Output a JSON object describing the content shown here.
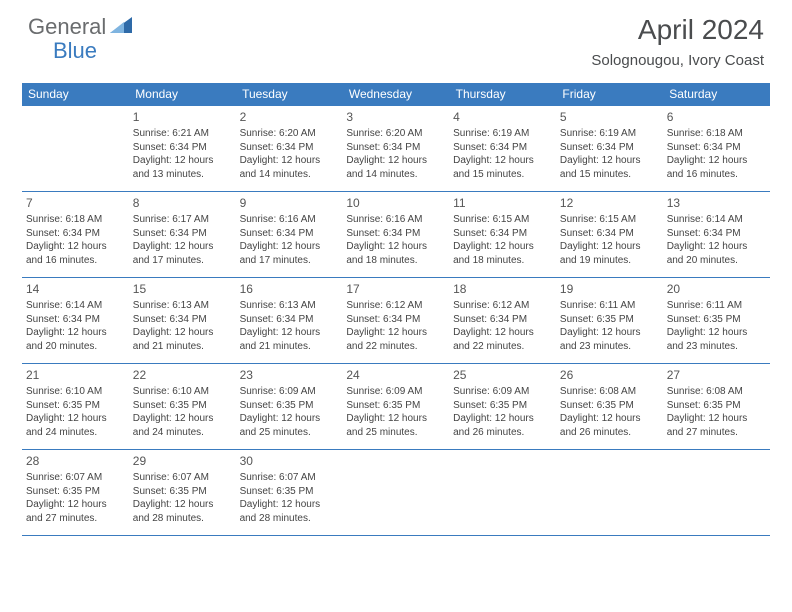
{
  "brand": {
    "part1": "General",
    "part2": "Blue"
  },
  "title": "April 2024",
  "subtitle": "Solognougou, Ivory Coast",
  "colors": {
    "header_bg": "#3a7bbf",
    "header_text": "#ffffff",
    "border": "#3a7bbf",
    "body_text": "#444444",
    "title_text": "#4a4c4e",
    "logo_gray": "#6a6c6e",
    "logo_blue": "#3a7bbf",
    "background": "#ffffff"
  },
  "weekdays": [
    "Sunday",
    "Monday",
    "Tuesday",
    "Wednesday",
    "Thursday",
    "Friday",
    "Saturday"
  ],
  "weeks": [
    [
      null,
      {
        "n": "1",
        "sr": "Sunrise: 6:21 AM",
        "ss": "Sunset: 6:34 PM",
        "d1": "Daylight: 12 hours",
        "d2": "and 13 minutes."
      },
      {
        "n": "2",
        "sr": "Sunrise: 6:20 AM",
        "ss": "Sunset: 6:34 PM",
        "d1": "Daylight: 12 hours",
        "d2": "and 14 minutes."
      },
      {
        "n": "3",
        "sr": "Sunrise: 6:20 AM",
        "ss": "Sunset: 6:34 PM",
        "d1": "Daylight: 12 hours",
        "d2": "and 14 minutes."
      },
      {
        "n": "4",
        "sr": "Sunrise: 6:19 AM",
        "ss": "Sunset: 6:34 PM",
        "d1": "Daylight: 12 hours",
        "d2": "and 15 minutes."
      },
      {
        "n": "5",
        "sr": "Sunrise: 6:19 AM",
        "ss": "Sunset: 6:34 PM",
        "d1": "Daylight: 12 hours",
        "d2": "and 15 minutes."
      },
      {
        "n": "6",
        "sr": "Sunrise: 6:18 AM",
        "ss": "Sunset: 6:34 PM",
        "d1": "Daylight: 12 hours",
        "d2": "and 16 minutes."
      }
    ],
    [
      {
        "n": "7",
        "sr": "Sunrise: 6:18 AM",
        "ss": "Sunset: 6:34 PM",
        "d1": "Daylight: 12 hours",
        "d2": "and 16 minutes."
      },
      {
        "n": "8",
        "sr": "Sunrise: 6:17 AM",
        "ss": "Sunset: 6:34 PM",
        "d1": "Daylight: 12 hours",
        "d2": "and 17 minutes."
      },
      {
        "n": "9",
        "sr": "Sunrise: 6:16 AM",
        "ss": "Sunset: 6:34 PM",
        "d1": "Daylight: 12 hours",
        "d2": "and 17 minutes."
      },
      {
        "n": "10",
        "sr": "Sunrise: 6:16 AM",
        "ss": "Sunset: 6:34 PM",
        "d1": "Daylight: 12 hours",
        "d2": "and 18 minutes."
      },
      {
        "n": "11",
        "sr": "Sunrise: 6:15 AM",
        "ss": "Sunset: 6:34 PM",
        "d1": "Daylight: 12 hours",
        "d2": "and 18 minutes."
      },
      {
        "n": "12",
        "sr": "Sunrise: 6:15 AM",
        "ss": "Sunset: 6:34 PM",
        "d1": "Daylight: 12 hours",
        "d2": "and 19 minutes."
      },
      {
        "n": "13",
        "sr": "Sunrise: 6:14 AM",
        "ss": "Sunset: 6:34 PM",
        "d1": "Daylight: 12 hours",
        "d2": "and 20 minutes."
      }
    ],
    [
      {
        "n": "14",
        "sr": "Sunrise: 6:14 AM",
        "ss": "Sunset: 6:34 PM",
        "d1": "Daylight: 12 hours",
        "d2": "and 20 minutes."
      },
      {
        "n": "15",
        "sr": "Sunrise: 6:13 AM",
        "ss": "Sunset: 6:34 PM",
        "d1": "Daylight: 12 hours",
        "d2": "and 21 minutes."
      },
      {
        "n": "16",
        "sr": "Sunrise: 6:13 AM",
        "ss": "Sunset: 6:34 PM",
        "d1": "Daylight: 12 hours",
        "d2": "and 21 minutes."
      },
      {
        "n": "17",
        "sr": "Sunrise: 6:12 AM",
        "ss": "Sunset: 6:34 PM",
        "d1": "Daylight: 12 hours",
        "d2": "and 22 minutes."
      },
      {
        "n": "18",
        "sr": "Sunrise: 6:12 AM",
        "ss": "Sunset: 6:34 PM",
        "d1": "Daylight: 12 hours",
        "d2": "and 22 minutes."
      },
      {
        "n": "19",
        "sr": "Sunrise: 6:11 AM",
        "ss": "Sunset: 6:35 PM",
        "d1": "Daylight: 12 hours",
        "d2": "and 23 minutes."
      },
      {
        "n": "20",
        "sr": "Sunrise: 6:11 AM",
        "ss": "Sunset: 6:35 PM",
        "d1": "Daylight: 12 hours",
        "d2": "and 23 minutes."
      }
    ],
    [
      {
        "n": "21",
        "sr": "Sunrise: 6:10 AM",
        "ss": "Sunset: 6:35 PM",
        "d1": "Daylight: 12 hours",
        "d2": "and 24 minutes."
      },
      {
        "n": "22",
        "sr": "Sunrise: 6:10 AM",
        "ss": "Sunset: 6:35 PM",
        "d1": "Daylight: 12 hours",
        "d2": "and 24 minutes."
      },
      {
        "n": "23",
        "sr": "Sunrise: 6:09 AM",
        "ss": "Sunset: 6:35 PM",
        "d1": "Daylight: 12 hours",
        "d2": "and 25 minutes."
      },
      {
        "n": "24",
        "sr": "Sunrise: 6:09 AM",
        "ss": "Sunset: 6:35 PM",
        "d1": "Daylight: 12 hours",
        "d2": "and 25 minutes."
      },
      {
        "n": "25",
        "sr": "Sunrise: 6:09 AM",
        "ss": "Sunset: 6:35 PM",
        "d1": "Daylight: 12 hours",
        "d2": "and 26 minutes."
      },
      {
        "n": "26",
        "sr": "Sunrise: 6:08 AM",
        "ss": "Sunset: 6:35 PM",
        "d1": "Daylight: 12 hours",
        "d2": "and 26 minutes."
      },
      {
        "n": "27",
        "sr": "Sunrise: 6:08 AM",
        "ss": "Sunset: 6:35 PM",
        "d1": "Daylight: 12 hours",
        "d2": "and 27 minutes."
      }
    ],
    [
      {
        "n": "28",
        "sr": "Sunrise: 6:07 AM",
        "ss": "Sunset: 6:35 PM",
        "d1": "Daylight: 12 hours",
        "d2": "and 27 minutes."
      },
      {
        "n": "29",
        "sr": "Sunrise: 6:07 AM",
        "ss": "Sunset: 6:35 PM",
        "d1": "Daylight: 12 hours",
        "d2": "and 28 minutes."
      },
      {
        "n": "30",
        "sr": "Sunrise: 6:07 AM",
        "ss": "Sunset: 6:35 PM",
        "d1": "Daylight: 12 hours",
        "d2": "and 28 minutes."
      },
      null,
      null,
      null,
      null
    ]
  ]
}
